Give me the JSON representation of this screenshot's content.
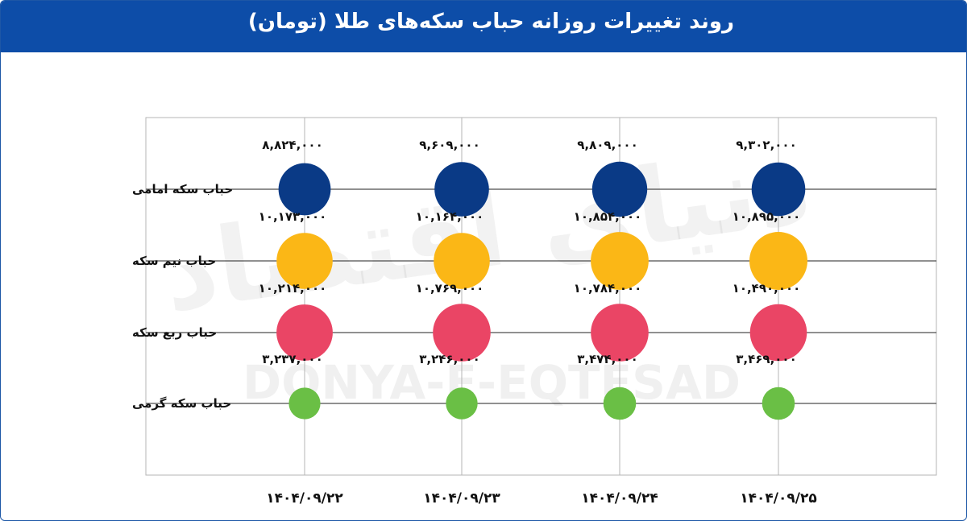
{
  "header": {
    "title": "روند تغییرات روزانه حباب سکه‌های طلا (تومان)"
  },
  "watermark": {
    "en": "DONYA-E-EQTESAD",
    "fa": "دنیای اقتصاد"
  },
  "colors": {
    "header_bg": "#0d4da8",
    "gold_coin": "#0a3a86",
    "half_coin": "#fbb716",
    "quarter_coin": "#ea4565",
    "gram_coin": "#6abf45",
    "grid": "#b5b5b5",
    "axis": "#222222"
  },
  "chart_data": {
    "type": "bubble",
    "title": "روند تغییرات روزانه حباب سکه‌های طلا (تومان)",
    "categories": [
      "۱۴۰۴/۰۹/۲۲",
      "۱۴۰۴/۰۹/۲۳",
      "۱۴۰۴/۰۹/۲۴",
      "۱۴۰۴/۰۹/۲۵"
    ],
    "series": [
      {
        "name": "حباب سکه امامی",
        "color": "#0a3a86",
        "values": [
          8824000,
          9609000,
          9809000,
          9302000
        ],
        "labels": [
          "۸,۸۲۴,۰۰۰",
          "۹,۶۰۹,۰۰۰",
          "۹,۸۰۹,۰۰۰",
          "۹,۳۰۲,۰۰۰"
        ]
      },
      {
        "name": "حباب نیم سکه",
        "color": "#fbb716",
        "values": [
          10173000,
          10164000,
          10854000,
          10895000
        ],
        "labels": [
          "۱۰,۱۷۳,۰۰۰",
          "۱۰,۱۶۴,۰۰۰",
          "۱۰,۸۵۴,۰۰۰",
          "۱۰,۸۹۵,۰۰۰"
        ]
      },
      {
        "name": "حباب ربع سکه",
        "color": "#ea4565",
        "values": [
          10214000,
          10769000,
          10784000,
          10490000
        ],
        "labels": [
          "۱۰,۲۱۴,۰۰۰",
          "۱۰,۷۶۹,۰۰۰",
          "۱۰,۷۸۴,۰۰۰",
          "۱۰,۴۹۰,۰۰۰"
        ]
      },
      {
        "name": "حباب سکه گرمی",
        "color": "#6abf45",
        "values": [
          3237000,
          3246000,
          3474000,
          3469000
        ],
        "labels": [
          "۳,۲۳۷,۰۰۰",
          "۳,۲۴۶,۰۰۰",
          "۳,۴۷۴,۰۰۰",
          "۳,۴۶۹,۰۰۰"
        ]
      }
    ],
    "grid": true,
    "legend": "none"
  }
}
